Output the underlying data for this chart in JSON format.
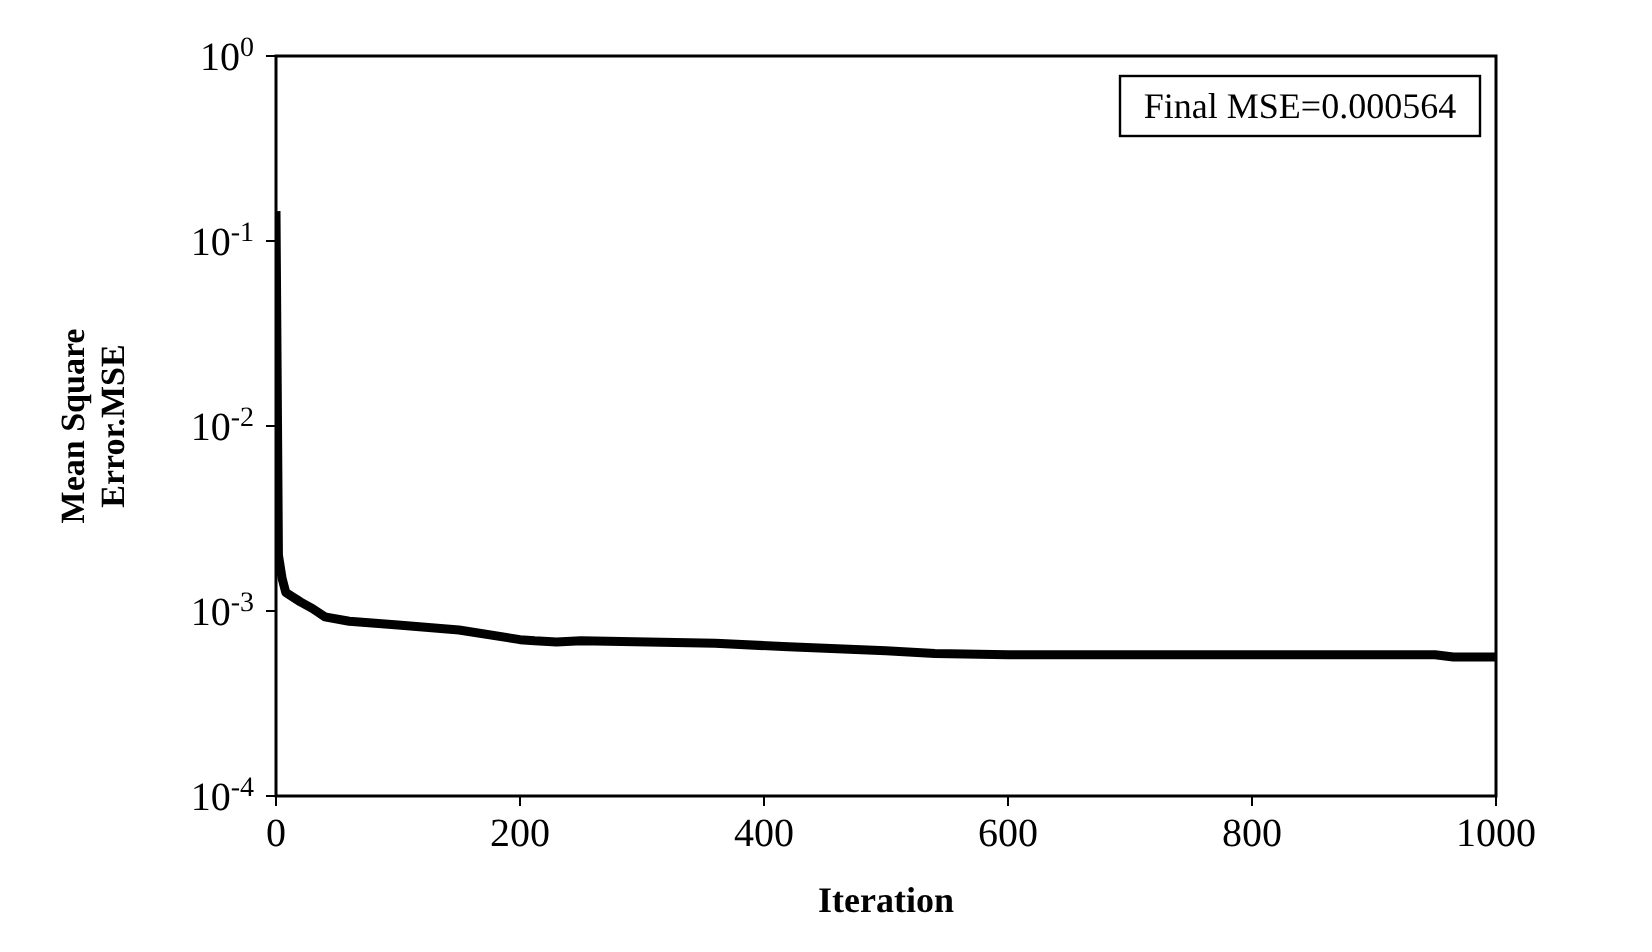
{
  "chart_data": {
    "type": "line",
    "xlabel": "Iteration",
    "ylabel": "Mean Square Error.MSE",
    "annotations": [
      "Final MSE=0.000564"
    ],
    "log": "y",
    "marker": "none",
    "line_style": "solid",
    "xlim": [
      0,
      1000
    ],
    "xticks": [
      0,
      200,
      400,
      600,
      800,
      1000
    ],
    "ylim": [
      0.0001,
      1
    ],
    "yticks": [
      {
        "value": 0.0001,
        "label": "10$^{-4}$"
      },
      {
        "value": 0.001,
        "label": "10$^{-3}$"
      },
      {
        "value": 0.01,
        "label": "10$^{-2}$"
      },
      {
        "value": 0.1,
        "label": "10$^{-1}$"
      },
      {
        "value": 1,
        "label": "10$^{0}$"
      }
    ],
    "series": [
      {
        "color": "#000000",
        "x": [
          0,
          2,
          5,
          8,
          20,
          30,
          40,
          60,
          100,
          150,
          200,
          212,
          230,
          250,
          360,
          420,
          500,
          540,
          600,
          950,
          965,
          1000
        ],
        "values": [
          0.145,
          0.002,
          0.0015,
          0.00126,
          0.00112,
          0.00103,
          0.00093,
          0.00088,
          0.00084,
          0.00079,
          0.0007,
          0.00069,
          0.00068,
          0.00069,
          0.00067,
          0.00064,
          0.00061,
          0.00059,
          0.00058,
          0.00058,
          0.000564,
          0.000564
        ]
      }
    ]
  }
}
